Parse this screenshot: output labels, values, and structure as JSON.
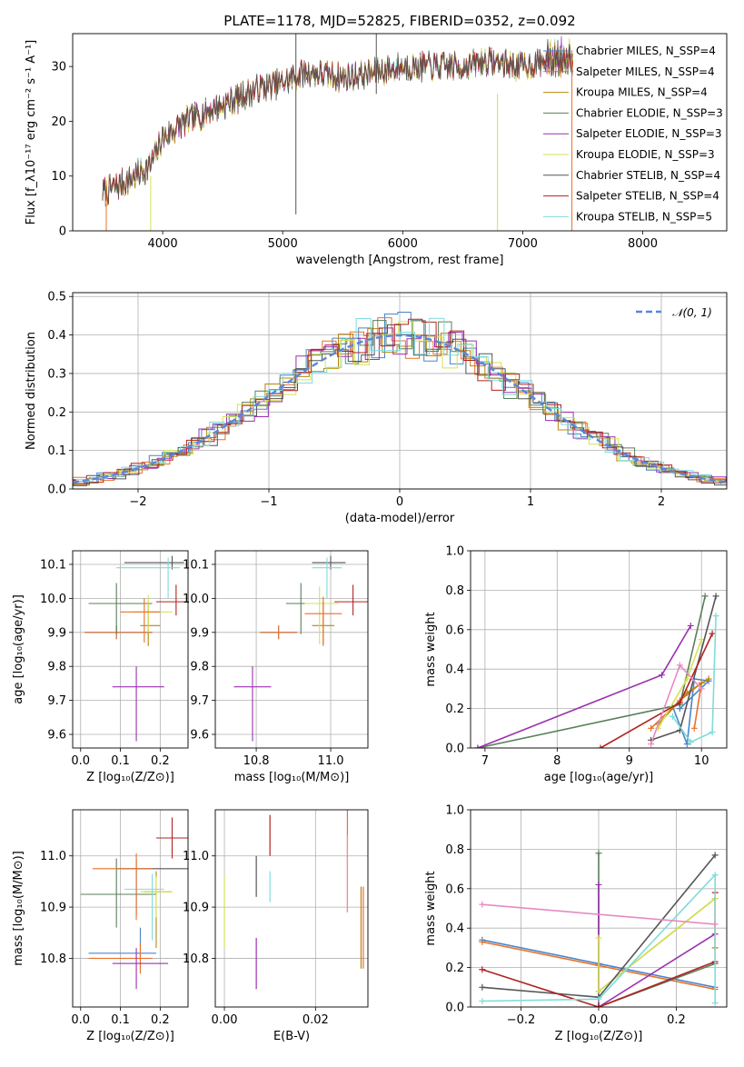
{
  "chart_data": [
    {
      "type": "line",
      "title": "PLATE=1178, MJD=52825, FIBERID=0352, z=0.092",
      "xlabel": "wavelength [Angstrom, rest frame]",
      "ylabel": "Flux [f_λ10⁻¹⁷ erg cm⁻² s⁻¹ A⁻¹]",
      "xlim": [
        3250,
        8700
      ],
      "ylim": [
        0,
        36
      ],
      "xticks": [
        "4000",
        "5000",
        "6000",
        "7000",
        "8000"
      ],
      "yticks": [
        "0",
        "10",
        "20",
        "30"
      ],
      "grid": false,
      "legend_position": "right",
      "legend": [
        {
          "label": "Chabrier MILES, N_SSP=4",
          "color": "#4a86c8"
        },
        {
          "label": "Salpeter MILES, N_SSP=4",
          "color": "#e8702a"
        },
        {
          "label": "Kroupa MILES, N_SSP=4",
          "color": "#b8860b"
        },
        {
          "label": "Chabrier ELODIE, N_SSP=3",
          "color": "#5a7f5a"
        },
        {
          "label": "Salpeter ELODIE, N_SSP=3",
          "color": "#9b30b0"
        },
        {
          "label": "Kroupa ELODIE, N_SSP=3",
          "color": "#d4e157"
        },
        {
          "label": "Chabrier STELIB, N_SSP=4",
          "color": "#555555"
        },
        {
          "label": "Salpeter STELIB, N_SSP=4",
          "color": "#b22222"
        },
        {
          "label": "Kroupa STELIB, N_SSP=5",
          "color": "#7fdbdb"
        }
      ],
      "spectrum_anchor_points": {
        "x": [
          3500,
          3700,
          3900,
          4000,
          4200,
          4500,
          4800,
          5000,
          5200,
          5500,
          5800,
          6000,
          6300,
          6500,
          6700,
          7000,
          7200,
          7400
        ],
        "y": [
          7,
          9,
          12,
          17,
          20,
          23,
          26,
          27,
          29,
          28,
          29,
          30,
          30,
          30,
          31,
          30,
          31,
          32
        ]
      }
    },
    {
      "type": "line",
      "xlabel": "(data-model)/error",
      "ylabel": "Normed distribution",
      "xlim": [
        -2.5,
        2.5
      ],
      "ylim": [
        0,
        0.51
      ],
      "xticks": [
        "−2",
        "−1",
        "0",
        "1",
        "2"
      ],
      "yticks": [
        "0.0",
        "0.1",
        "0.2",
        "0.3",
        "0.4",
        "0.5"
      ],
      "grid": true,
      "legend_position": "top-right",
      "legend": [
        {
          "label": "𝒩(0, 1)",
          "color": "#5588dd"
        }
      ]
    },
    {
      "type": "scatter",
      "xlabel": "Z [log₁₀(Z/Z⊙)]",
      "ylabel": "age  [log₁₀(age/yr)]",
      "xlim": [
        -0.02,
        0.27
      ],
      "ylim": [
        9.56,
        10.14
      ],
      "xticks": [
        "0.0",
        "0.1",
        "0.2"
      ],
      "yticks": [
        "9.6",
        "9.7",
        "9.8",
        "9.9",
        "10.0",
        "10.1"
      ],
      "grid": true
    },
    {
      "type": "scatter",
      "xlabel": "mass [log₁₀(M/M⊙)]",
      "xlim": [
        10.69,
        11.1
      ],
      "ylim": [
        9.56,
        10.14
      ],
      "xticks": [
        "10.8",
        "11.0"
      ],
      "yticks": [
        "9.6",
        "9.7",
        "9.8",
        "9.9",
        "10.0",
        "10.1"
      ],
      "grid": true
    },
    {
      "type": "line",
      "xlabel": "age  [log₁₀(age/yr)]",
      "ylabel": "mass weight",
      "xlim": [
        6.8,
        10.35
      ],
      "ylim": [
        0,
        1
      ],
      "xticks": [
        "7",
        "8",
        "9",
        "10"
      ],
      "yticks": [
        "0.0",
        "0.2",
        "0.4",
        "0.6",
        "0.8",
        "1.0"
      ],
      "grid": true
    },
    {
      "type": "scatter",
      "xlabel": "Z [log₁₀(Z/Z⊙)]",
      "ylabel": "mass [log₁₀(M/M⊙)]",
      "xlim": [
        -0.02,
        0.27
      ],
      "ylim": [
        10.705,
        11.09
      ],
      "xticks": [
        "0.0",
        "0.1",
        "0.2"
      ],
      "yticks": [
        "10.8",
        "10.9",
        "11.0"
      ],
      "grid": true
    },
    {
      "type": "scatter",
      "xlabel": "E(B-V)",
      "xlim": [
        -0.002,
        0.0315
      ],
      "ylim": [
        10.705,
        11.09
      ],
      "xticks": [
        "0.00",
        "0.02"
      ],
      "yticks": [
        "10.8",
        "10.9",
        "11.0"
      ],
      "grid": true
    },
    {
      "type": "line",
      "xlabel": "Z [log₁₀(Z/Z⊙)]",
      "ylabel": "mass weight",
      "xlim": [
        -0.33,
        0.33
      ],
      "ylim": [
        0,
        1
      ],
      "xticks": [
        "−0.2",
        "0.0",
        "0.2"
      ],
      "yticks": [
        "0.0",
        "0.2",
        "0.4",
        "0.6",
        "0.8",
        "1.0"
      ],
      "grid": true
    }
  ]
}
